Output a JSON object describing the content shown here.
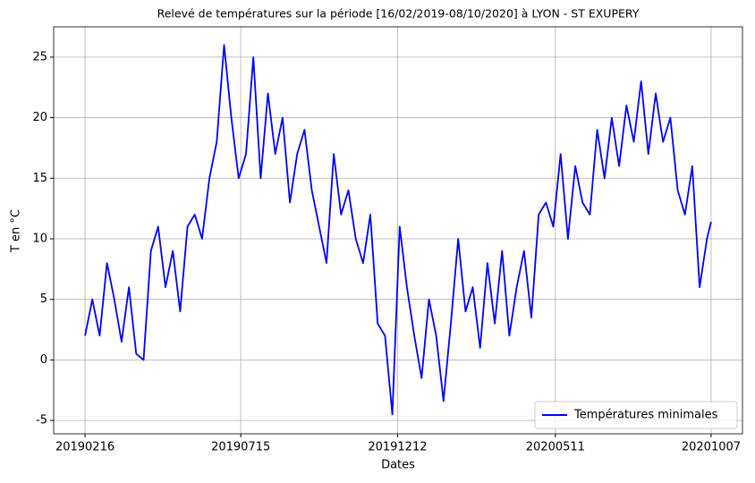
{
  "chart_data": {
    "type": "line",
    "title": "Relevé de températures sur la période [16/02/2019-08/10/2020] à LYON - ST EXUPERY",
    "xlabel": "Dates",
    "ylabel": "T en °C",
    "x": [
      "20190216",
      "20190223",
      "20190302",
      "20190309",
      "20190316",
      "20190323",
      "20190330",
      "20190406",
      "20190413",
      "20190420",
      "20190427",
      "20190504",
      "20190511",
      "20190518",
      "20190525",
      "20190601",
      "20190608",
      "20190615",
      "20190622",
      "20190629",
      "20190706",
      "20190713",
      "20190720",
      "20190727",
      "20190803",
      "20190810",
      "20190817",
      "20190824",
      "20190831",
      "20190907",
      "20190914",
      "20190921",
      "20190928",
      "20191005",
      "20191012",
      "20191019",
      "20191026",
      "20191102",
      "20191109",
      "20191116",
      "20191123",
      "20191130",
      "20191207",
      "20191214",
      "20191221",
      "20191228",
      "20200104",
      "20200111",
      "20200118",
      "20200125",
      "20200201",
      "20200208",
      "20200215",
      "20200222",
      "20200229",
      "20200307",
      "20200314",
      "20200321",
      "20200328",
      "20200404",
      "20200411",
      "20200418",
      "20200425",
      "20200502",
      "20200509",
      "20200516",
      "20200523",
      "20200530",
      "20200606",
      "20200613",
      "20200620",
      "20200627",
      "20200704",
      "20200711",
      "20200718",
      "20200725",
      "20200801",
      "20200808",
      "20200815",
      "20200822",
      "20200829",
      "20200905",
      "20200912",
      "20200919",
      "20200926",
      "20201003",
      "20201007"
    ],
    "series": [
      {
        "name": "Températures minimales",
        "color": "#0000ff",
        "values": [
          2,
          5,
          2,
          8,
          5,
          1.5,
          6,
          0.5,
          0,
          9,
          11,
          6,
          9,
          4,
          11,
          12,
          10,
          15,
          18,
          26,
          20,
          15,
          17,
          25,
          15,
          22,
          17,
          20,
          13,
          17,
          19,
          14,
          11,
          8,
          17,
          12,
          14,
          10,
          8,
          12,
          3,
          2,
          -4.5,
          11,
          6,
          2,
          -1.5,
          5,
          2,
          -3.4,
          3,
          10,
          4,
          6,
          1,
          8,
          3,
          9,
          2,
          6,
          9,
          3.5,
          12,
          13,
          11,
          17,
          10,
          16,
          13,
          12,
          19,
          15,
          20,
          16,
          21,
          18,
          23,
          17,
          22,
          18,
          20,
          14,
          12,
          16,
          6,
          10,
          11.4
        ]
      }
    ],
    "xlim": [
      "20190117",
      "20201106"
    ],
    "xticks": [
      "20190216",
      "20190715",
      "20191212",
      "20200511",
      "20201007"
    ],
    "ylim": [
      -6.1,
      27.5
    ],
    "yticks": [
      -5,
      0,
      5,
      10,
      15,
      20,
      25
    ],
    "grid": true,
    "legend": "lower right"
  }
}
